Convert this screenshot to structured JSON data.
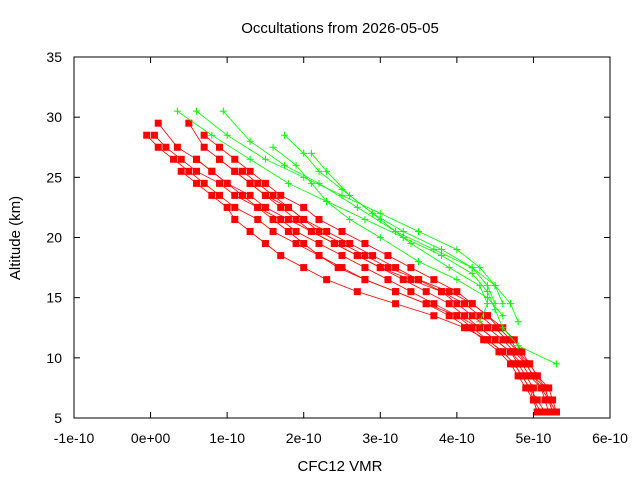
{
  "chart_data": {
    "type": "scatter",
    "title": "Occultations from 2026-05-05",
    "xlabel": "CFC12 VMR",
    "ylabel": "Altitude (km)",
    "xlim": [
      -1e-10,
      6e-10
    ],
    "ylim": [
      5,
      35
    ],
    "x_ticks": [
      {
        "value": -1e-10,
        "label": "-1e-10"
      },
      {
        "value": 0,
        "label": "0e+00"
      },
      {
        "value": 1e-10,
        "label": "1e-10"
      },
      {
        "value": 2e-10,
        "label": "2e-10"
      },
      {
        "value": 3e-10,
        "label": "3e-10"
      },
      {
        "value": 4e-10,
        "label": "4e-10"
      },
      {
        "value": 5e-10,
        "label": "5e-10"
      },
      {
        "value": 6e-10,
        "label": "6e-10"
      }
    ],
    "y_ticks": [
      {
        "value": 5,
        "label": "5"
      },
      {
        "value": 10,
        "label": "10"
      },
      {
        "value": 15,
        "label": "15"
      },
      {
        "value": 20,
        "label": "20"
      },
      {
        "value": 25,
        "label": "25"
      },
      {
        "value": 30,
        "label": "30"
      },
      {
        "value": 35,
        "label": "35"
      }
    ],
    "grid": false,
    "legend": "none",
    "colors": {
      "red_series": "#ff0000",
      "green_series": "#00ff00",
      "frame": "#000000"
    },
    "series": [
      {
        "marker": "square",
        "color": "#ff0000",
        "points": [
          [
            -5e-12,
            28.5
          ],
          [
            1e-11,
            27.5
          ],
          [
            3e-11,
            26.5
          ],
          [
            5e-11,
            25.5
          ],
          [
            7e-11,
            24.5
          ],
          [
            9e-11,
            23.5
          ],
          [
            1.1e-10,
            22.5
          ],
          [
            1.4e-10,
            21.5
          ],
          [
            1.6e-10,
            20.5
          ],
          [
            1.9e-10,
            19.5
          ],
          [
            2.2e-10,
            18.5
          ],
          [
            2.5e-10,
            17.5
          ],
          [
            2.8e-10,
            16.5
          ],
          [
            3.2e-10,
            15.5
          ],
          [
            3.6e-10,
            14.5
          ],
          [
            4e-10,
            13.5
          ],
          [
            4.3e-10,
            12.5
          ],
          [
            4.5e-10,
            11.5
          ],
          [
            4.7e-10,
            10.5
          ],
          [
            4.8e-10,
            9.5
          ],
          [
            4.9e-10,
            8.5
          ],
          [
            5e-10,
            7.5
          ],
          [
            5e-10,
            6.5
          ],
          [
            5.1e-10,
            5.5
          ]
        ]
      },
      {
        "marker": "square",
        "color": "#ff0000",
        "points": [
          [
            5e-12,
            28.5
          ],
          [
            2e-11,
            27.5
          ],
          [
            4e-11,
            26.5
          ],
          [
            6e-11,
            25.5
          ],
          [
            9e-11,
            24.5
          ],
          [
            1.1e-10,
            23.5
          ],
          [
            1.4e-10,
            22.5
          ],
          [
            1.7e-10,
            21.5
          ],
          [
            1.9e-10,
            20.5
          ],
          [
            2.2e-10,
            19.5
          ],
          [
            2.5e-10,
            18.5
          ],
          [
            2.8e-10,
            17.5
          ],
          [
            3.1e-10,
            16.5
          ],
          [
            3.4e-10,
            15.5
          ],
          [
            3.7e-10,
            14.5
          ],
          [
            4e-10,
            13.5
          ],
          [
            4.2e-10,
            12.5
          ],
          [
            4.4e-10,
            11.5
          ],
          [
            4.6e-10,
            10.5
          ],
          [
            4.75e-10,
            9.5
          ],
          [
            4.85e-10,
            8.5
          ],
          [
            4.95e-10,
            7.5
          ],
          [
            5.05e-10,
            6.5
          ],
          [
            5.15e-10,
            5.5
          ]
        ]
      },
      {
        "marker": "square",
        "color": "#ff0000",
        "points": [
          [
            1e-11,
            29.5
          ],
          [
            3.5e-11,
            27.5
          ],
          [
            6e-11,
            26.5
          ],
          [
            8e-11,
            25.5
          ],
          [
            1e-10,
            24.5
          ],
          [
            1.3e-10,
            23.5
          ],
          [
            1.5e-10,
            22.5
          ],
          [
            1.8e-10,
            21.5
          ],
          [
            2.1e-10,
            20.5
          ],
          [
            2.4e-10,
            19.5
          ],
          [
            2.7e-10,
            18.5
          ],
          [
            3e-10,
            17.5
          ],
          [
            3.3e-10,
            16.5
          ],
          [
            3.6e-10,
            15.5
          ],
          [
            3.9e-10,
            14.5
          ],
          [
            4.1e-10,
            13.5
          ],
          [
            4.3e-10,
            12.5
          ],
          [
            4.5e-10,
            11.5
          ],
          [
            4.7e-10,
            10.5
          ],
          [
            4.85e-10,
            9.5
          ],
          [
            4.95e-10,
            8.5
          ],
          [
            5.1e-10,
            7.5
          ],
          [
            5.2e-10,
            6.5
          ],
          [
            5.25e-10,
            5.5
          ]
        ]
      },
      {
        "marker": "square",
        "color": "#ff0000",
        "points": [
          [
            5e-11,
            29.5
          ],
          [
            7e-11,
            27.5
          ],
          [
            9e-11,
            26.5
          ],
          [
            1.1e-10,
            25.5
          ],
          [
            1.3e-10,
            24.5
          ],
          [
            1.5e-10,
            23.5
          ],
          [
            1.8e-10,
            22.5
          ],
          [
            2e-10,
            21.5
          ],
          [
            2.3e-10,
            20.5
          ],
          [
            2.6e-10,
            19.5
          ],
          [
            2.9e-10,
            18.5
          ],
          [
            3.2e-10,
            17.5
          ],
          [
            3.5e-10,
            16.5
          ],
          [
            3.8e-10,
            15.5
          ],
          [
            4e-10,
            14.5
          ],
          [
            4.2e-10,
            13.5
          ],
          [
            4.4e-10,
            12.5
          ],
          [
            4.6e-10,
            11.5
          ],
          [
            4.75e-10,
            10.5
          ],
          [
            4.9e-10,
            9.5
          ],
          [
            5e-10,
            8.5
          ],
          [
            5.15e-10,
            7.5
          ],
          [
            5.2e-10,
            6.5
          ],
          [
            5.3e-10,
            5.5
          ]
        ]
      },
      {
        "marker": "square",
        "color": "#ff0000",
        "points": [
          [
            7e-11,
            28.5
          ],
          [
            9e-11,
            27.5
          ],
          [
            1.1e-10,
            26.5
          ],
          [
            1.3e-10,
            25.5
          ],
          [
            1.5e-10,
            24.5
          ],
          [
            1.7e-10,
            23.5
          ],
          [
            2e-10,
            22.5
          ],
          [
            2.2e-10,
            21.5
          ],
          [
            2.5e-10,
            20.5
          ],
          [
            2.8e-10,
            19.5
          ],
          [
            3.1e-10,
            18.5
          ],
          [
            3.4e-10,
            17.5
          ],
          [
            3.7e-10,
            16.5
          ],
          [
            4e-10,
            15.5
          ],
          [
            4.2e-10,
            14.5
          ],
          [
            4.4e-10,
            13.5
          ],
          [
            4.55e-10,
            12.5
          ],
          [
            4.7e-10,
            11.5
          ],
          [
            4.8e-10,
            10.5
          ],
          [
            4.95e-10,
            9.5
          ],
          [
            5.05e-10,
            8.5
          ],
          [
            5.2e-10,
            7.5
          ],
          [
            5.25e-10,
            6.5
          ],
          [
            5.3e-10,
            5.5
          ]
        ]
      },
      {
        "marker": "square",
        "color": "#ff0000",
        "points": [
          [
            6e-11,
            26.5
          ],
          [
            8e-11,
            25.5
          ],
          [
            1e-10,
            24.5
          ],
          [
            1.2e-10,
            23.5
          ],
          [
            1.4e-10,
            22.5
          ],
          [
            1.6e-10,
            21.5
          ],
          [
            1.8e-10,
            20.5
          ],
          [
            2e-10,
            19.5
          ],
          [
            2.2e-10,
            18.5
          ],
          [
            2.45e-10,
            17.5
          ],
          [
            2.8e-10,
            16.5
          ],
          [
            3.2e-10,
            15.5
          ],
          [
            3.6e-10,
            14.5
          ],
          [
            3.9e-10,
            13.5
          ],
          [
            4.15e-10,
            12.5
          ],
          [
            4.35e-10,
            11.5
          ],
          [
            4.55e-10,
            10.5
          ],
          [
            4.7e-10,
            9.5
          ],
          [
            4.8e-10,
            8.5
          ],
          [
            4.9e-10,
            7.5
          ],
          [
            5e-10,
            6.5
          ],
          [
            5.05e-10,
            5.5
          ]
        ]
      },
      {
        "marker": "square",
        "color": "#ff0000",
        "points": [
          [
            4e-11,
            25.5
          ],
          [
            6e-11,
            24.5
          ],
          [
            8e-11,
            23.5
          ],
          [
            1e-10,
            22.5
          ],
          [
            1.1e-10,
            21.5
          ],
          [
            1.3e-10,
            20.5
          ],
          [
            1.5e-10,
            19.5
          ],
          [
            1.7e-10,
            18.5
          ],
          [
            2e-10,
            17.5
          ],
          [
            2.3e-10,
            16.5
          ],
          [
            2.7e-10,
            15.5
          ],
          [
            3.2e-10,
            14.5
          ],
          [
            3.7e-10,
            13.5
          ],
          [
            4.1e-10,
            12.5
          ],
          [
            4.4e-10,
            11.5
          ],
          [
            4.6e-10,
            10.5
          ],
          [
            4.75e-10,
            9.5
          ],
          [
            4.85e-10,
            8.5
          ],
          [
            4.95e-10,
            7.5
          ],
          [
            5e-10,
            6.5
          ],
          [
            5.05e-10,
            5.5
          ]
        ]
      },
      {
        "marker": "square",
        "color": "#ff0000",
        "points": [
          [
            9e-11,
            26.5
          ],
          [
            1.1e-10,
            25.5
          ],
          [
            1.3e-10,
            24.5
          ],
          [
            1.5e-10,
            23.5
          ],
          [
            1.7e-10,
            22.5
          ],
          [
            1.9e-10,
            21.5
          ],
          [
            2.1e-10,
            20.5
          ],
          [
            2.4e-10,
            19.5
          ],
          [
            2.7e-10,
            18.5
          ],
          [
            3e-10,
            17.5
          ],
          [
            3.4e-10,
            16.5
          ],
          [
            3.8e-10,
            15.5
          ],
          [
            4.1e-10,
            14.5
          ],
          [
            4.3e-10,
            13.5
          ],
          [
            4.5e-10,
            12.5
          ],
          [
            4.65e-10,
            11.5
          ],
          [
            4.8e-10,
            10.5
          ],
          [
            4.9e-10,
            9.5
          ],
          [
            5e-10,
            8.5
          ],
          [
            5.1e-10,
            7.5
          ],
          [
            5.15e-10,
            6.5
          ],
          [
            5.2e-10,
            5.5
          ]
        ]
      },
      {
        "marker": "square",
        "color": "#ff0000",
        "points": [
          [
            1.2e-10,
            25.5
          ],
          [
            1.4e-10,
            24.5
          ],
          [
            1.6e-10,
            23.5
          ],
          [
            1.8e-10,
            22.5
          ],
          [
            2e-10,
            21.5
          ],
          [
            2.2e-10,
            20.5
          ],
          [
            2.5e-10,
            19.5
          ],
          [
            2.8e-10,
            18.5
          ],
          [
            3.1e-10,
            17.5
          ],
          [
            3.5e-10,
            16.5
          ],
          [
            3.9e-10,
            15.5
          ],
          [
            4.2e-10,
            14.5
          ],
          [
            4.4e-10,
            13.5
          ],
          [
            4.6e-10,
            12.5
          ],
          [
            4.75e-10,
            11.5
          ],
          [
            4.85e-10,
            10.5
          ],
          [
            4.95e-10,
            9.5
          ],
          [
            5.05e-10,
            8.5
          ],
          [
            5.15e-10,
            7.5
          ],
          [
            5.2e-10,
            6.5
          ],
          [
            5.25e-10,
            5.5
          ]
        ]
      }
    ],
    "series_green": [
      {
        "marker": "plus",
        "color": "#00ff00",
        "points": [
          [
            3.5e-11,
            30.5
          ],
          [
            8e-11,
            28.5
          ],
          [
            1.3e-10,
            26.5
          ],
          [
            1.8e-10,
            24.5
          ],
          [
            2.3e-10,
            23.0
          ],
          [
            2.8e-10,
            21.5
          ],
          [
            3.3e-10,
            20.0
          ],
          [
            3.8e-10,
            18.5
          ],
          [
            4.2e-10,
            17.0
          ],
          [
            4.4e-10,
            15.5
          ],
          [
            4.5e-10,
            14.0
          ],
          [
            4.6e-10,
            12.5
          ],
          [
            4.8e-10,
            11.0
          ],
          [
            5.3e-10,
            9.5
          ]
        ]
      },
      {
        "marker": "plus",
        "color": "#00ff00",
        "points": [
          [
            6e-11,
            30.5
          ],
          [
            1e-10,
            28.5
          ],
          [
            1.5e-10,
            26.5
          ],
          [
            2e-10,
            25.0
          ],
          [
            2.5e-10,
            23.5
          ],
          [
            3e-10,
            22.0
          ],
          [
            3.5e-10,
            20.5
          ],
          [
            4e-10,
            19.0
          ],
          [
            4.3e-10,
            17.5
          ],
          [
            4.5e-10,
            16.0
          ],
          [
            4.7e-10,
            14.5
          ],
          [
            4.8e-10,
            13.0
          ]
        ]
      },
      {
        "marker": "plus",
        "color": "#00ff00",
        "points": [
          [
            9.5e-11,
            30.5
          ],
          [
            1.3e-10,
            28.0
          ],
          [
            1.75e-10,
            26.0
          ],
          [
            2.2e-10,
            24.5
          ],
          [
            2.7e-10,
            22.5
          ],
          [
            3.2e-10,
            20.5
          ],
          [
            3.7e-10,
            19.0
          ],
          [
            4.2e-10,
            17.5
          ],
          [
            4.5e-10,
            16.0
          ],
          [
            4.6e-10,
            14.5
          ]
        ]
      },
      {
        "marker": "plus",
        "color": "#00ff00",
        "points": [
          [
            1.75e-10,
            28.5
          ],
          [
            2e-10,
            27.0
          ],
          [
            2.2e-10,
            25.5
          ],
          [
            2.5e-10,
            24.0
          ],
          [
            2.9e-10,
            22.0
          ],
          [
            3.3e-10,
            20.5
          ],
          [
            3.8e-10,
            19.0
          ],
          [
            4.2e-10,
            17.5
          ],
          [
            4.4e-10,
            16.0
          ],
          [
            4.5e-10,
            14.5
          ]
        ]
      },
      {
        "marker": "plus",
        "color": "#00ff00",
        "points": [
          [
            2.1e-10,
            27.0
          ],
          [
            2.3e-10,
            25.5
          ],
          [
            2.6e-10,
            23.5
          ],
          [
            3e-10,
            21.5
          ],
          [
            3.4e-10,
            19.5
          ],
          [
            3.9e-10,
            17.5
          ],
          [
            4.3e-10,
            16.0
          ],
          [
            4.4e-10,
            14.5
          ],
          [
            4.3e-10,
            13.0
          ]
        ]
      },
      {
        "marker": "plus",
        "color": "#00ff00",
        "points": [
          [
            1.6e-10,
            27.5
          ],
          [
            1.9e-10,
            26.0
          ],
          [
            2.1e-10,
            24.5
          ],
          [
            2.3e-10,
            23.0
          ],
          [
            2.6e-10,
            21.5
          ],
          [
            3e-10,
            20.0
          ],
          [
            3.5e-10,
            18.0
          ],
          [
            4e-10,
            16.5
          ],
          [
            4.4e-10,
            15.0
          ],
          [
            4.6e-10,
            13.5
          ]
        ]
      }
    ]
  }
}
